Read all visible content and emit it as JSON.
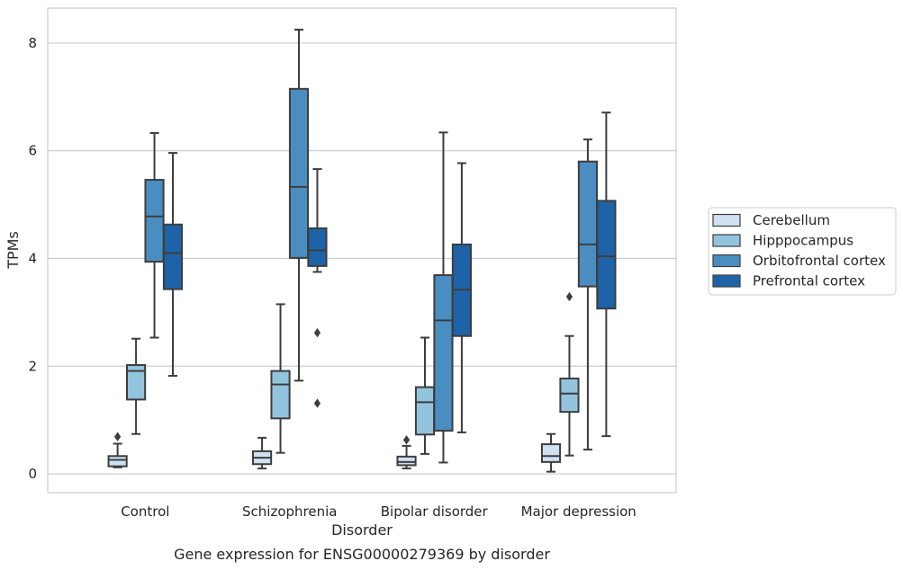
{
  "chart_data": {
    "type": "box",
    "title": "",
    "caption": "Gene expression for ENSG00000279369 by disorder",
    "xlabel": "Disorder",
    "ylabel": "TPMs",
    "ylim": [
      -0.35,
      8.65
    ],
    "yticks": [
      0,
      2,
      4,
      6,
      8
    ],
    "grid": true,
    "legend_position": "right",
    "categories": [
      "Control",
      "Schizophrenia",
      "Bipolar disorder",
      "Major depression"
    ],
    "series": [
      {
        "name": "Cerebellum",
        "color": "#cfe1f2",
        "boxes": [
          {
            "whislo": 0.12,
            "q1": 0.14,
            "med": 0.26,
            "q3": 0.33,
            "whishi": 0.56,
            "fliers": [
              0.69
            ]
          },
          {
            "whislo": 0.1,
            "q1": 0.18,
            "med": 0.3,
            "q3": 0.42,
            "whishi": 0.67,
            "fliers": []
          },
          {
            "whislo": 0.1,
            "q1": 0.16,
            "med": 0.22,
            "q3": 0.32,
            "whishi": 0.52,
            "fliers": [
              0.63
            ]
          },
          {
            "whislo": 0.04,
            "q1": 0.22,
            "med": 0.33,
            "q3": 0.55,
            "whishi": 0.74,
            "fliers": []
          }
        ]
      },
      {
        "name": "Hipppocampus",
        "color": "#93c4de",
        "boxes": [
          {
            "whislo": 0.74,
            "q1": 1.38,
            "med": 1.91,
            "q3": 2.02,
            "whishi": 2.51,
            "fliers": []
          },
          {
            "whislo": 0.39,
            "q1": 1.03,
            "med": 1.66,
            "q3": 1.91,
            "whishi": 3.15,
            "fliers": []
          },
          {
            "whislo": 0.37,
            "q1": 0.73,
            "med": 1.33,
            "q3": 1.61,
            "whishi": 2.53,
            "fliers": []
          },
          {
            "whislo": 0.34,
            "q1": 1.15,
            "med": 1.49,
            "q3": 1.77,
            "whishi": 2.56,
            "fliers": [
              3.29
            ]
          }
        ]
      },
      {
        "name": "Orbitofrontal cortex",
        "color": "#4a8ec1",
        "boxes": [
          {
            "whislo": 2.53,
            "q1": 3.94,
            "med": 4.78,
            "q3": 5.46,
            "whishi": 6.33,
            "fliers": []
          },
          {
            "whislo": 1.73,
            "q1": 4.01,
            "med": 5.33,
            "q3": 7.15,
            "whishi": 8.25,
            "fliers": []
          },
          {
            "whislo": 0.21,
            "q1": 0.8,
            "med": 2.85,
            "q3": 3.69,
            "whishi": 6.34,
            "fliers": []
          },
          {
            "whislo": 0.45,
            "q1": 3.48,
            "med": 4.26,
            "q3": 5.8,
            "whishi": 6.21,
            "fliers": []
          }
        ]
      },
      {
        "name": "Prefrontal cortex",
        "color": "#1e63a7",
        "boxes": [
          {
            "whislo": 1.82,
            "q1": 3.43,
            "med": 4.1,
            "q3": 4.63,
            "whishi": 5.96,
            "fliers": []
          },
          {
            "whislo": 3.75,
            "q1": 3.86,
            "med": 4.15,
            "q3": 4.56,
            "whishi": 5.66,
            "fliers": [
              2.62,
              1.31
            ]
          },
          {
            "whislo": 0.77,
            "q1": 2.56,
            "med": 3.42,
            "q3": 4.26,
            "whishi": 5.77,
            "fliers": []
          },
          {
            "whislo": 0.7,
            "q1": 3.07,
            "med": 4.04,
            "q3": 5.07,
            "whishi": 6.71,
            "fliers": []
          }
        ]
      }
    ]
  }
}
